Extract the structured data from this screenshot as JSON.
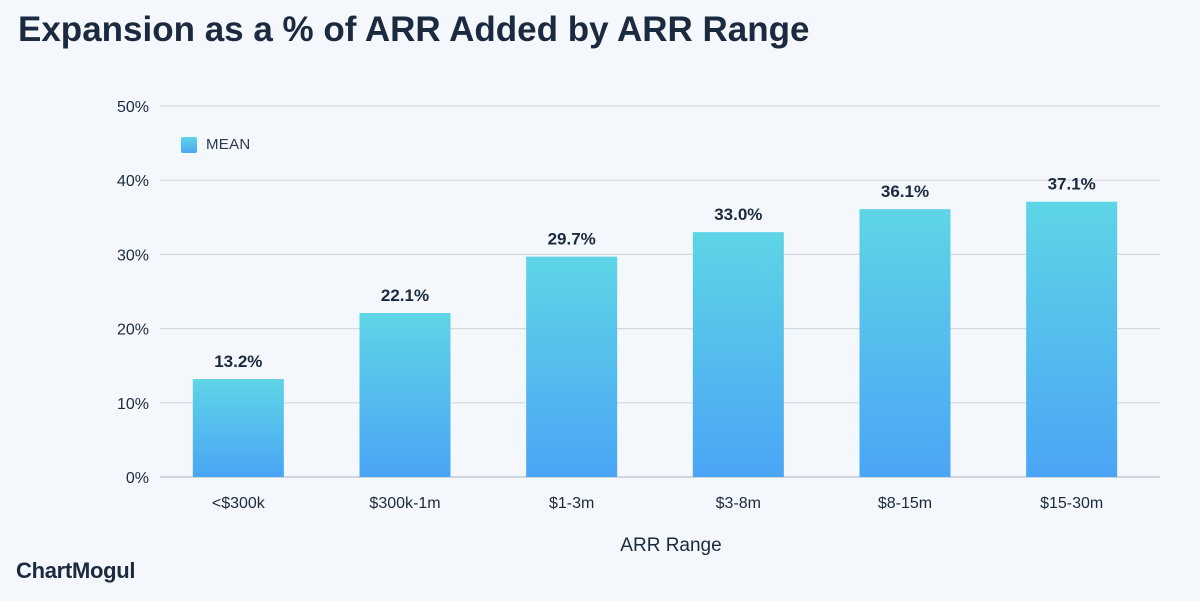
{
  "chart_data": {
    "type": "bar",
    "title": "Expansion as a % of ARR Added by ARR Range",
    "xlabel": "ARR Range",
    "ylabel": "",
    "categories": [
      "<$300k",
      "$300k-1m",
      "$1-3m",
      "$3-8m",
      "$8-15m",
      "$15-30m"
    ],
    "series": [
      {
        "name": "MEAN",
        "values": [
          13.2,
          22.1,
          29.7,
          33.0,
          36.1,
          37.1
        ],
        "labels": [
          "13.2%",
          "22.1%",
          "29.7%",
          "33.0%",
          "36.1%",
          "37.1%"
        ]
      }
    ],
    "ylim": [
      0,
      50
    ],
    "yticks": [
      0,
      10,
      20,
      30,
      40,
      50
    ],
    "ytick_labels": [
      "0%",
      "10%",
      "20%",
      "30%",
      "40%",
      "50%"
    ],
    "grid": true,
    "legend_position": "top-left",
    "bar_gradient": {
      "top": "#5ed5e6",
      "bottom": "#4aa5f5"
    },
    "text_color": "#1c2a3f",
    "grid_color": "#d3d9e1",
    "background": "#f4f7fb"
  },
  "branding": {
    "logo": "ChartMogul"
  }
}
